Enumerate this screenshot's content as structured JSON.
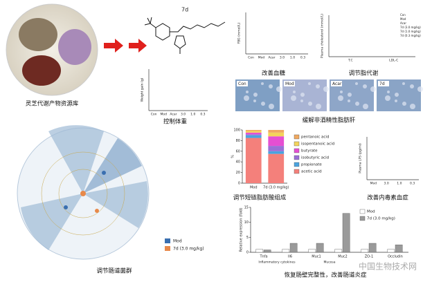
{
  "captions": [
    "灵芝代谢产物资源库",
    "控制体重",
    "改善血糖",
    "调节脂代谢",
    "缓解非酒精性脂肪肝",
    "调节肠道菌群",
    "调节短链脂肪酸组成",
    "改善内毒素血症",
    "恢复肠壁完整性，改善肠道炎症"
  ],
  "compound_label": "7d",
  "histology_labels": [
    "Con",
    "Mod",
    "Acar",
    "7d"
  ],
  "mini_panels": [
    {
      "ylabel": "Weight gain (g)",
      "categories": [
        "Con",
        "Mod",
        "Acar",
        "3.0",
        "1.0",
        "0.3"
      ]
    },
    {
      "ylabel": "FBG (mmol/L)",
      "categories": [
        "Con",
        "Mod",
        "Acar",
        "3.0",
        "1.0",
        "0.3"
      ]
    },
    {
      "ylabel": "Plasma cholesterol (mmol/L)",
      "categories": [
        "T.C",
        "LDL-C"
      ],
      "legend": [
        "Con",
        "Mod",
        "Acar",
        "7d (3.0 mg/kg)",
        "7d (1.0 mg/kg)",
        "7d (0.3 mg/kg)"
      ]
    },
    {
      "ylabel": "Plasma LPS (pg/ml)",
      "categories": [
        "Mod",
        "3.0",
        "1.0",
        "0.3"
      ]
    }
  ],
  "lefse_legend": [
    {
      "name": "Mod",
      "color": "#3a6fb0"
    },
    {
      "name": "7d (3.0 mg/kg)",
      "color": "#e8894a"
    }
  ],
  "scfa_chart": {
    "type": "bar",
    "stacked": true,
    "ylabel": "%",
    "categories": [
      "Mod",
      "7d (3.0 mg/kg)"
    ],
    "ylim": [
      0,
      100
    ],
    "yticks": [
      0,
      20,
      40,
      60,
      80,
      100
    ],
    "series": [
      {
        "name": "acetic acid",
        "color": "#f4807b",
        "values": [
          85,
          55
        ]
      },
      {
        "name": "propionate",
        "color": "#4aa3df",
        "values": [
          5,
          5
        ]
      },
      {
        "name": "isobutyric acid",
        "color": "#9b6fd6",
        "values": [
          2,
          10
        ]
      },
      {
        "name": "butyrate",
        "color": "#e64fd2",
        "values": [
          3,
          18
        ]
      },
      {
        "name": "isopentanoic acid",
        "color": "#f3d35b",
        "values": [
          3,
          7
        ]
      },
      {
        "name": "pentanoic acid",
        "color": "#f0a860",
        "values": [
          2,
          5
        ]
      }
    ]
  },
  "expression_chart": {
    "type": "bar",
    "stacked": false,
    "ylabel": "Relative expression (fold)",
    "categories": [
      "Tnfa",
      "Il6",
      "Muc1",
      "Muc2",
      "ZO-1",
      "Occludin"
    ],
    "groups": [
      "Inflammatory cytokines",
      "Mucosa"
    ],
    "ylim": [
      0,
      15
    ],
    "yticks": [
      0,
      5,
      10,
      15
    ],
    "series": [
      {
        "name": "Mod",
        "color": "#ffffff",
        "values": [
          1,
          1,
          1,
          1,
          1,
          1
        ]
      },
      {
        "name": "7d (3.0 mg/kg)",
        "color": "#9a9a9a",
        "values": [
          0.8,
          3,
          3,
          13,
          3,
          2.5
        ]
      }
    ]
  },
  "watermark": "中国生物技术网"
}
